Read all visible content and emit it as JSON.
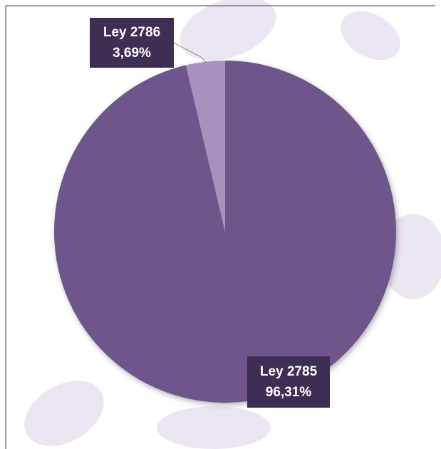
{
  "chart_data": {
    "type": "pie",
    "categories": [
      "Ley 2785",
      "Ley 2786"
    ],
    "values": [
      96.31,
      3.69
    ],
    "value_labels": [
      "96,31%",
      "3,69%"
    ],
    "colors": [
      "#6e568c",
      "#a692bd"
    ]
  }
}
